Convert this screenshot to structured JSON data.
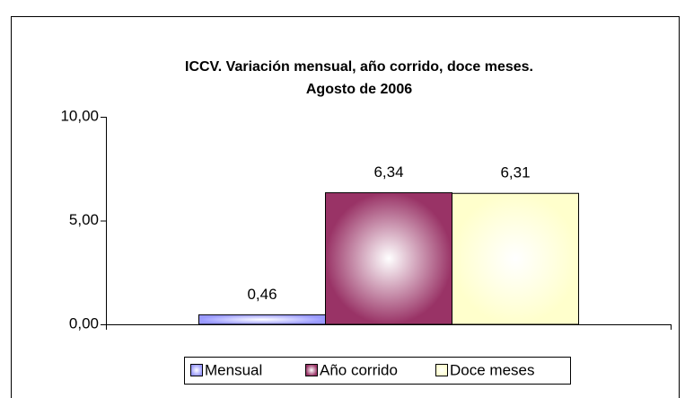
{
  "chart_data": {
    "type": "bar",
    "title": "ICCV. Variación mensual, año corrido, doce meses.",
    "subtitle": "Agosto de 2006",
    "categories": [
      null
    ],
    "series": [
      {
        "name": "Mensual",
        "color": "#9999ff",
        "values": [
          0.46
        ],
        "value_labels": [
          "0,46"
        ]
      },
      {
        "name": "Año corrido",
        "color": "#993366",
        "values": [
          6.34
        ],
        "value_labels": [
          "6,34"
        ]
      },
      {
        "name": "Doce meses",
        "color": "#ffffcc",
        "values": [
          6.31
        ],
        "value_labels": [
          "6,31"
        ]
      }
    ],
    "ylim": [
      0,
      10
    ],
    "yticks": [
      {
        "value": 0,
        "label": "0,00"
      },
      {
        "value": 5,
        "label": "5,00"
      },
      {
        "value": 10,
        "label": "10,00"
      }
    ],
    "grid": false,
    "legend": "bottom"
  }
}
